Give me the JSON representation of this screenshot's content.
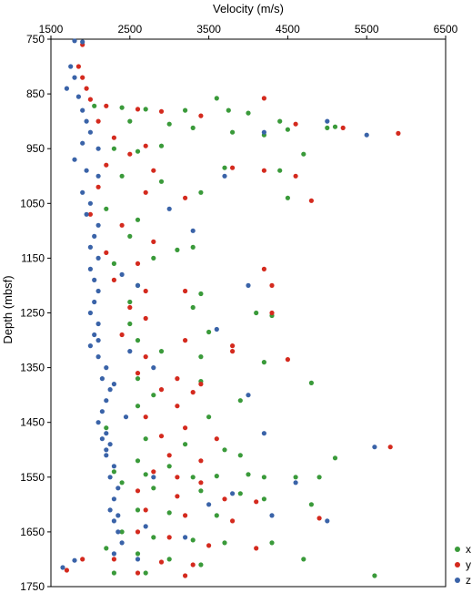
{
  "chart_data": {
    "type": "scatter",
    "title": "",
    "xlabel": "Velocity (m/s)",
    "ylabel": "Depth (mbsf)",
    "x_axis_position": "top",
    "y_axis_inverted": true,
    "xlim": [
      1500,
      6500
    ],
    "ylim": [
      750,
      1750
    ],
    "x_ticks": [
      1500,
      2500,
      3500,
      4500,
      5500,
      6500
    ],
    "y_ticks": [
      750,
      850,
      950,
      1050,
      1150,
      1250,
      1350,
      1450,
      1550,
      1650,
      1750
    ],
    "grid": false,
    "legend_position": "bottom-right",
    "series": [
      {
        "name": "x",
        "color": "#3a9a3a",
        "points": [
          [
            2050,
            872
          ],
          [
            2400,
            875
          ],
          [
            2700,
            878
          ],
          [
            3200,
            880
          ],
          [
            3600,
            858
          ],
          [
            3750,
            880
          ],
          [
            4000,
            885
          ],
          [
            4400,
            900
          ],
          [
            5000,
            912
          ],
          [
            5100,
            910
          ],
          [
            2500,
            900
          ],
          [
            3000,
            905
          ],
          [
            3300,
            912
          ],
          [
            3800,
            920
          ],
          [
            4200,
            925
          ],
          [
            4500,
            915
          ],
          [
            2300,
            950
          ],
          [
            2600,
            955
          ],
          [
            2900,
            945
          ],
          [
            3700,
            985
          ],
          [
            4400,
            990
          ],
          [
            4700,
            960
          ],
          [
            2400,
            1000
          ],
          [
            2900,
            1010
          ],
          [
            3400,
            1030
          ],
          [
            4500,
            1040
          ],
          [
            2200,
            1060
          ],
          [
            2600,
            1080
          ],
          [
            3100,
            1135
          ],
          [
            3300,
            1130
          ],
          [
            2500,
            1110
          ],
          [
            2800,
            1150
          ],
          [
            2300,
            1160
          ],
          [
            2600,
            1200
          ],
          [
            3400,
            1215
          ],
          [
            2500,
            1230
          ],
          [
            3300,
            1240
          ],
          [
            4100,
            1250
          ],
          [
            4300,
            1255
          ],
          [
            2500,
            1270
          ],
          [
            3500,
            1285
          ],
          [
            2600,
            1300
          ],
          [
            2900,
            1320
          ],
          [
            3400,
            1330
          ],
          [
            4200,
            1340
          ],
          [
            2600,
            1370
          ],
          [
            3400,
            1375
          ],
          [
            4800,
            1378
          ],
          [
            2800,
            1400
          ],
          [
            3900,
            1410
          ],
          [
            2600,
            1420
          ],
          [
            3500,
            1440
          ],
          [
            2200,
            1460
          ],
          [
            2700,
            1480
          ],
          [
            3200,
            1490
          ],
          [
            3700,
            1500
          ],
          [
            3900,
            1510
          ],
          [
            5100,
            1515
          ],
          [
            2600,
            1520
          ],
          [
            3000,
            1530
          ],
          [
            2300,
            1540
          ],
          [
            2700,
            1545
          ],
          [
            3300,
            1550
          ],
          [
            3600,
            1548
          ],
          [
            4000,
            1545
          ],
          [
            4200,
            1550
          ],
          [
            4600,
            1550
          ],
          [
            4900,
            1550
          ],
          [
            2400,
            1560
          ],
          [
            2800,
            1570
          ],
          [
            3400,
            1575
          ],
          [
            3900,
            1580
          ],
          [
            4200,
            1590
          ],
          [
            4800,
            1600
          ],
          [
            2600,
            1610
          ],
          [
            3000,
            1615
          ],
          [
            3600,
            1620
          ],
          [
            2400,
            1650
          ],
          [
            2800,
            1660
          ],
          [
            3300,
            1665
          ],
          [
            3700,
            1670
          ],
          [
            4300,
            1670
          ],
          [
            2200,
            1680
          ],
          [
            2600,
            1690
          ],
          [
            3000,
            1700
          ],
          [
            3400,
            1710
          ],
          [
            4700,
            1700
          ],
          [
            2300,
            1725
          ],
          [
            2700,
            1725
          ],
          [
            5600,
            1730
          ]
        ]
      },
      {
        "name": "y",
        "color": "#d42a1e",
        "points": [
          [
            1900,
            760
          ],
          [
            1850,
            800
          ],
          [
            1900,
            820
          ],
          [
            1950,
            840
          ],
          [
            2000,
            860
          ],
          [
            2200,
            872
          ],
          [
            2600,
            878
          ],
          [
            2900,
            882
          ],
          [
            3400,
            890
          ],
          [
            4200,
            858
          ],
          [
            4600,
            905
          ],
          [
            5200,
            912
          ],
          [
            5900,
            922
          ],
          [
            2100,
            900
          ],
          [
            2300,
            930
          ],
          [
            2700,
            945
          ],
          [
            2500,
            960
          ],
          [
            2200,
            980
          ],
          [
            2800,
            990
          ],
          [
            3800,
            985
          ],
          [
            4200,
            990
          ],
          [
            4600,
            1000
          ],
          [
            2100,
            1020
          ],
          [
            2700,
            1030
          ],
          [
            3200,
            1040
          ],
          [
            4800,
            1045
          ],
          [
            2000,
            1070
          ],
          [
            2400,
            1090
          ],
          [
            2800,
            1120
          ],
          [
            2200,
            1140
          ],
          [
            2600,
            1160
          ],
          [
            4200,
            1170
          ],
          [
            2300,
            1190
          ],
          [
            2700,
            1210
          ],
          [
            3200,
            1210
          ],
          [
            4300,
            1200
          ],
          [
            2500,
            1240
          ],
          [
            4300,
            1250
          ],
          [
            2700,
            1260
          ],
          [
            2400,
            1290
          ],
          [
            3200,
            1300
          ],
          [
            3800,
            1310
          ],
          [
            2700,
            1330
          ],
          [
            3800,
            1320
          ],
          [
            4500,
            1335
          ],
          [
            2600,
            1360
          ],
          [
            3100,
            1370
          ],
          [
            3400,
            1380
          ],
          [
            2900,
            1390
          ],
          [
            3300,
            1395
          ],
          [
            3100,
            1420
          ],
          [
            2700,
            1440
          ],
          [
            3200,
            1460
          ],
          [
            2900,
            1475
          ],
          [
            3600,
            1480
          ],
          [
            5800,
            1495
          ],
          [
            3000,
            1510
          ],
          [
            3400,
            1520
          ],
          [
            2800,
            1540
          ],
          [
            3100,
            1550
          ],
          [
            3400,
            1560
          ],
          [
            2600,
            1575
          ],
          [
            3100,
            1585
          ],
          [
            3700,
            1590
          ],
          [
            4100,
            1595
          ],
          [
            2700,
            1610
          ],
          [
            3200,
            1620
          ],
          [
            3800,
            1630
          ],
          [
            4900,
            1625
          ],
          [
            2600,
            1650
          ],
          [
            3000,
            1660
          ],
          [
            3500,
            1675
          ],
          [
            4100,
            1680
          ],
          [
            2300,
            1700
          ],
          [
            2900,
            1705
          ],
          [
            3300,
            1710
          ],
          [
            1900,
            1700
          ],
          [
            1700,
            1720
          ],
          [
            2600,
            1725
          ],
          [
            3200,
            1730
          ]
        ]
      },
      {
        "name": "z",
        "color": "#3a63a8",
        "points": [
          [
            1800,
            753
          ],
          [
            1900,
            755
          ],
          [
            1750,
            800
          ],
          [
            1800,
            820
          ],
          [
            1700,
            840
          ],
          [
            1850,
            855
          ],
          [
            1900,
            880
          ],
          [
            1950,
            900
          ],
          [
            2000,
            920
          ],
          [
            1900,
            940
          ],
          [
            2100,
            950
          ],
          [
            1800,
            970
          ],
          [
            1950,
            990
          ],
          [
            2100,
            1000
          ],
          [
            1900,
            1030
          ],
          [
            2000,
            1050
          ],
          [
            1950,
            1070
          ],
          [
            2100,
            1090
          ],
          [
            2050,
            1110
          ],
          [
            2000,
            1130
          ],
          [
            2100,
            1150
          ],
          [
            2000,
            1170
          ],
          [
            2050,
            1190
          ],
          [
            2100,
            1210
          ],
          [
            2050,
            1230
          ],
          [
            2000,
            1250
          ],
          [
            2100,
            1270
          ],
          [
            2050,
            1290
          ],
          [
            2000,
            1310
          ],
          [
            2100,
            1330
          ],
          [
            2200,
            1350
          ],
          [
            2150,
            1370
          ],
          [
            2250,
            1390
          ],
          [
            2200,
            1410
          ],
          [
            2150,
            1430
          ],
          [
            2100,
            1450
          ],
          [
            2200,
            1470
          ],
          [
            2250,
            1490
          ],
          [
            2200,
            1510
          ],
          [
            2300,
            1530
          ],
          [
            2250,
            1550
          ],
          [
            2350,
            1570
          ],
          [
            2300,
            1590
          ],
          [
            2250,
            1610
          ],
          [
            2300,
            1630
          ],
          [
            2350,
            1650
          ],
          [
            2400,
            1670
          ],
          [
            2300,
            1690
          ],
          [
            1800,
            1702
          ],
          [
            1650,
            1715
          ],
          [
            2100,
            1300
          ],
          [
            2400,
            1180
          ],
          [
            3300,
            1100
          ],
          [
            3700,
            1000
          ],
          [
            4200,
            920
          ],
          [
            5000,
            900
          ],
          [
            5500,
            925
          ],
          [
            4000,
            1200
          ],
          [
            2800,
            1350
          ],
          [
            3600,
            1280
          ],
          [
            4000,
            1400
          ],
          [
            4200,
            1470
          ],
          [
            5600,
            1495
          ],
          [
            2600,
            1200
          ],
          [
            3000,
            1060
          ],
          [
            2800,
            1550
          ],
          [
            3500,
            1600
          ],
          [
            4300,
            1620
          ],
          [
            5000,
            1630
          ],
          [
            3800,
            1580
          ],
          [
            4600,
            1560
          ],
          [
            2700,
            1640
          ],
          [
            3200,
            1660
          ],
          [
            2600,
            1700
          ],
          [
            2200,
            1500
          ],
          [
            2450,
            1440
          ],
          [
            2500,
            1320
          ],
          [
            2300,
            1380
          ],
          [
            2150,
            1480
          ],
          [
            2350,
            1620
          ]
        ]
      }
    ]
  }
}
